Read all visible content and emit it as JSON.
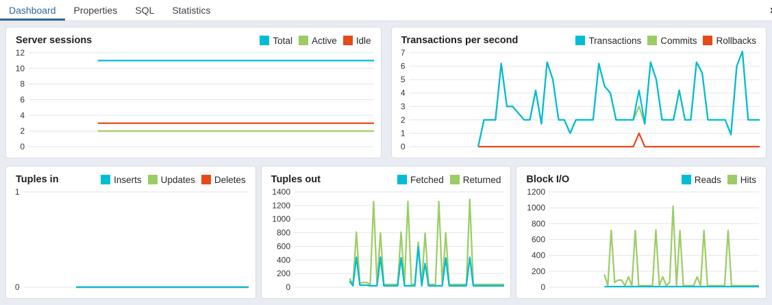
{
  "tabs": [
    {
      "label": "Dashboard",
      "active": true
    },
    {
      "label": "Properties",
      "active": false
    },
    {
      "label": "SQL",
      "active": false
    },
    {
      "label": "Statistics",
      "active": false
    }
  ],
  "tab_overflow_glyph": "x",
  "colors": {
    "cyan": "#00BCD4",
    "green": "#9CCC65",
    "red": "#E64A19",
    "active_tab": "#326690",
    "gridline": "#e2e4ec",
    "panel_bg": "#ffffff",
    "page_bg": "#e9ecf2"
  },
  "chart_data": [
    {
      "type": "line",
      "title": "Server sessions",
      "ylim": [
        0,
        12
      ],
      "yticks": [
        0,
        2,
        4,
        6,
        8,
        10,
        12
      ],
      "grid": true,
      "legend_position": "top-right",
      "series": [
        {
          "name": "Total",
          "color": "#00BCD4",
          "values": [
            null,
            null,
            null,
            null,
            null,
            null,
            11,
            11,
            11,
            11,
            11,
            11,
            11,
            11,
            11,
            11,
            11,
            11,
            11,
            11,
            11,
            11,
            11,
            11,
            11,
            11,
            11,
            11,
            11,
            11,
            11
          ]
        },
        {
          "name": "Active",
          "color": "#9CCC65",
          "values": [
            null,
            null,
            null,
            null,
            null,
            null,
            2,
            2,
            2,
            2,
            2,
            2,
            2,
            2,
            2,
            2,
            2,
            2,
            2,
            2,
            2,
            2,
            2,
            2,
            2,
            2,
            2,
            2,
            2,
            2,
            2
          ]
        },
        {
          "name": "Idle",
          "color": "#E64A19",
          "values": [
            null,
            null,
            null,
            null,
            null,
            null,
            3,
            3,
            3,
            3,
            3,
            3,
            3,
            3,
            3,
            3,
            3,
            3,
            3,
            3,
            3,
            3,
            3,
            3,
            3,
            3,
            3,
            3,
            3,
            3,
            3
          ]
        }
      ]
    },
    {
      "type": "line",
      "title": "Transactions per second",
      "ylim": [
        0,
        7
      ],
      "yticks": [
        0,
        1,
        2,
        3,
        4,
        5,
        6,
        7
      ],
      "grid": true,
      "legend_position": "top-right",
      "series": [
        {
          "name": "Transactions",
          "color": "#00BCD4",
          "values": [
            null,
            null,
            null,
            null,
            null,
            null,
            null,
            null,
            null,
            null,
            null,
            null,
            0,
            2,
            2,
            2,
            6.2,
            3,
            3,
            2.5,
            2,
            2,
            4.2,
            1.7,
            6.3,
            5,
            2,
            2,
            1,
            2,
            2,
            2,
            2,
            6.2,
            4.5,
            4,
            2,
            2,
            2,
            2,
            4.2,
            1.7,
            6.3,
            5,
            2,
            2,
            2,
            4.2,
            2,
            2,
            6.3,
            5.5,
            2,
            2,
            2,
            2,
            0.9,
            6,
            7.1,
            2,
            2,
            2
          ]
        },
        {
          "name": "Commits",
          "color": "#9CCC65",
          "values": [
            null,
            null,
            null,
            null,
            null,
            null,
            null,
            null,
            null,
            null,
            null,
            null,
            0,
            2,
            2,
            2,
            6.2,
            3,
            3,
            2.5,
            2,
            2,
            4.2,
            1.7,
            6.3,
            5,
            2,
            2,
            1,
            2,
            2,
            2,
            2,
            6.2,
            4.5,
            4,
            2,
            2,
            2,
            2,
            3,
            1.7,
            6.3,
            5,
            2,
            2,
            2,
            4.2,
            2,
            2,
            6.3,
            5.5,
            2,
            2,
            2,
            2,
            0.9,
            6,
            7.1,
            2,
            2,
            2
          ]
        },
        {
          "name": "Rollbacks",
          "color": "#E64A19",
          "values": [
            null,
            null,
            null,
            null,
            null,
            null,
            null,
            null,
            null,
            null,
            null,
            null,
            0,
            0,
            0,
            0,
            0,
            0,
            0,
            0,
            0,
            0,
            0,
            0,
            0,
            0,
            0,
            0,
            0,
            0,
            0,
            0,
            0,
            0,
            0,
            0,
            0,
            0,
            0,
            0,
            1,
            0,
            0,
            0,
            0,
            0,
            0,
            0,
            0,
            0,
            0,
            0,
            0,
            0,
            0,
            0,
            0,
            0,
            0,
            0,
            0,
            0
          ]
        }
      ]
    },
    {
      "type": "line",
      "title": "Tuples in",
      "ylim": [
        0,
        1
      ],
      "yticks": [
        0,
        1
      ],
      "grid": true,
      "legend_position": "top-right",
      "series": [
        {
          "name": "Inserts",
          "color": "#00BCD4",
          "values": [
            null,
            null,
            null,
            null,
            null,
            null,
            null,
            0,
            0,
            0,
            0,
            0,
            0,
            0,
            0,
            0,
            0,
            0,
            0,
            0,
            0,
            0,
            0,
            0,
            0,
            0,
            0,
            0,
            0,
            0,
            0
          ]
        },
        {
          "name": "Updates",
          "color": "#9CCC65",
          "values": [
            null,
            null,
            null,
            null,
            null,
            null,
            null,
            0,
            0,
            0,
            0,
            0,
            0,
            0,
            0,
            0,
            0,
            0,
            0,
            0,
            0,
            0,
            0,
            0,
            0,
            0,
            0,
            0,
            0,
            0,
            0
          ]
        },
        {
          "name": "Deletes",
          "color": "#E64A19",
          "values": [
            null,
            null,
            null,
            null,
            null,
            null,
            null,
            0,
            0,
            0,
            0,
            0,
            0,
            0,
            0,
            0,
            0,
            0,
            0,
            0,
            0,
            0,
            0,
            0,
            0,
            0,
            0,
            0,
            0,
            0,
            0
          ]
        }
      ]
    },
    {
      "type": "line",
      "title": "Tuples out",
      "ylim": [
        0,
        1400
      ],
      "yticks": [
        0,
        200,
        400,
        600,
        800,
        1000,
        1200,
        1400
      ],
      "grid": true,
      "legend_position": "top-right",
      "series": [
        {
          "name": "Fetched",
          "color": "#00BCD4",
          "values": [
            null,
            null,
            null,
            null,
            null,
            null,
            null,
            null,
            null,
            null,
            null,
            null,
            null,
            null,
            null,
            null,
            90,
            20,
            440,
            30,
            30,
            30,
            20,
            20,
            20,
            440,
            20,
            20,
            20,
            20,
            20,
            430,
            20,
            20,
            20,
            20,
            590,
            20,
            350,
            20,
            20,
            20,
            20,
            20,
            430,
            20,
            20,
            20,
            20,
            20,
            20,
            440,
            20,
            20,
            20,
            20,
            20,
            20,
            20,
            20,
            20,
            20
          ]
        },
        {
          "name": "Returned",
          "color": "#9CCC65",
          "values": [
            null,
            null,
            null,
            null,
            null,
            null,
            null,
            null,
            null,
            null,
            null,
            null,
            null,
            null,
            null,
            null,
            130,
            40,
            810,
            60,
            70,
            70,
            40,
            1260,
            40,
            800,
            40,
            40,
            40,
            40,
            40,
            810,
            40,
            1260,
            40,
            40,
            660,
            40,
            795,
            40,
            40,
            40,
            1260,
            40,
            800,
            40,
            40,
            40,
            40,
            40,
            40,
            1290,
            40,
            40,
            40,
            40,
            40,
            40,
            40,
            40,
            40,
            40
          ]
        }
      ]
    },
    {
      "type": "line",
      "title": "Block I/O",
      "ylim": [
        0,
        1200
      ],
      "yticks": [
        0,
        200,
        400,
        600,
        800,
        1000,
        1200
      ],
      "grid": true,
      "legend_position": "top-right",
      "series": [
        {
          "name": "Reads",
          "color": "#00BCD4",
          "values": [
            null,
            null,
            null,
            null,
            null,
            null,
            null,
            null,
            null,
            null,
            null,
            null,
            null,
            null,
            null,
            null,
            8,
            8,
            8,
            8,
            8,
            8,
            8,
            8,
            8,
            8,
            8,
            8,
            8,
            8,
            8,
            8,
            8,
            8,
            8,
            8,
            8,
            8,
            8,
            8,
            8,
            8,
            8,
            8,
            8,
            8,
            8,
            8,
            8,
            8,
            8,
            8,
            8,
            8,
            8,
            8,
            8,
            8,
            8,
            8,
            8,
            8
          ]
        },
        {
          "name": "Hits",
          "color": "#9CCC65",
          "values": [
            null,
            null,
            null,
            null,
            null,
            null,
            null,
            null,
            null,
            null,
            null,
            null,
            null,
            null,
            null,
            null,
            160,
            20,
            715,
            60,
            90,
            90,
            20,
            130,
            20,
            715,
            20,
            20,
            20,
            20,
            20,
            720,
            20,
            130,
            20,
            60,
            1020,
            20,
            715,
            20,
            20,
            20,
            20,
            130,
            20,
            715,
            20,
            20,
            20,
            20,
            20,
            20,
            715,
            20,
            20,
            20,
            20,
            20,
            20,
            20,
            20,
            20
          ]
        }
      ]
    }
  ]
}
